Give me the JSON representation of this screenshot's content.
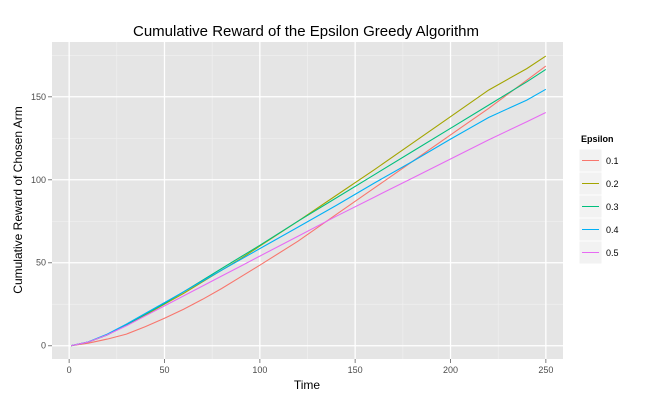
{
  "chart_data": {
    "type": "line",
    "title": "Cumulative Reward of the Epsilon Greedy Algorithm",
    "xlabel": "Time",
    "ylabel": "Cumulative Reward of Chosen Arm",
    "xlim": [
      -9,
      259
    ],
    "ylim": [
      -8,
      183
    ],
    "x_ticks": [
      0,
      50,
      100,
      150,
      200,
      250
    ],
    "y_ticks": [
      0,
      50,
      100,
      150
    ],
    "grid": true,
    "legend": {
      "title": "Epsilon",
      "position": "right"
    },
    "series": [
      {
        "name": "0.1",
        "color": "#F8766D",
        "x": [
          1,
          10,
          20,
          30,
          40,
          50,
          60,
          70,
          80,
          90,
          100,
          120,
          140,
          160,
          180,
          200,
          220,
          240,
          250
        ],
        "y": [
          0,
          1.5,
          4,
          7,
          11.5,
          16.5,
          22,
          28,
          34.5,
          41.5,
          48.5,
          63,
          79,
          95,
          111,
          127,
          143,
          160,
          168.5
        ]
      },
      {
        "name": "0.2",
        "color": "#A3A500",
        "x": [
          1,
          10,
          20,
          30,
          40,
          50,
          60,
          70,
          80,
          90,
          100,
          120,
          140,
          160,
          180,
          200,
          220,
          240,
          250
        ],
        "y": [
          0,
          2.2,
          6.5,
          12.5,
          18.5,
          25,
          31.5,
          38.5,
          45.5,
          52.5,
          60,
          75,
          90.5,
          106,
          122,
          138,
          154,
          167,
          174.5
        ]
      },
      {
        "name": "0.3",
        "color": "#00BF7D",
        "x": [
          1,
          10,
          20,
          30,
          40,
          50,
          60,
          70,
          80,
          90,
          100,
          120,
          140,
          160,
          180,
          200,
          220,
          240,
          250
        ],
        "y": [
          0,
          2.2,
          6.5,
          12.5,
          19,
          25.5,
          32.5,
          39.5,
          46.5,
          53.5,
          60.5,
          75,
          89,
          103,
          117,
          131,
          145,
          159,
          166.5
        ]
      },
      {
        "name": "0.4",
        "color": "#00B0F6",
        "x": [
          1,
          10,
          20,
          30,
          40,
          50,
          60,
          70,
          80,
          90,
          100,
          120,
          140,
          160,
          180,
          200,
          220,
          240,
          250
        ],
        "y": [
          0,
          2.3,
          7,
          13,
          19.5,
          26,
          32.5,
          39,
          45.5,
          52,
          58.5,
          71.5,
          84.5,
          98,
          111,
          124.5,
          137.5,
          148,
          154.5
        ]
      },
      {
        "name": "0.5",
        "color": "#E76BF3",
        "x": [
          1,
          10,
          20,
          30,
          40,
          50,
          60,
          70,
          80,
          90,
          100,
          120,
          140,
          160,
          180,
          200,
          220,
          240,
          250
        ],
        "y": [
          0,
          2.2,
          6.5,
          12,
          18,
          24,
          30,
          36,
          42,
          48,
          54,
          66,
          78,
          89.5,
          101,
          112.5,
          124,
          135,
          140.5
        ]
      }
    ]
  }
}
